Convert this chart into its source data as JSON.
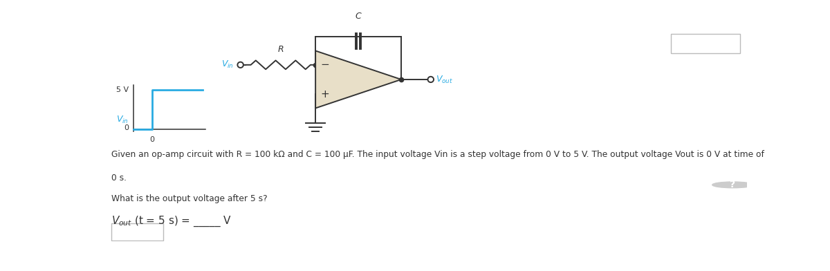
{
  "bg_color": "#ffffff",
  "circuit_color": "#333333",
  "blue_color": "#29abe2",
  "opamp_fill": "#e8dfc8",
  "text_color": "#333333",
  "description_line1": "Given an op-amp circuit with R = 100 kΩ and C = 100 μF. The input voltage Vin is a step voltage from 0 V to 5 V. The output voltage Vout is 0 V at time of",
  "description_line2": "0 s.",
  "question": "What is the output voltage after 5 s?",
  "r_label": "R",
  "c_label": "C",
  "step_5v": "5 V",
  "step_0_x": "0",
  "step_0_y": "0",
  "fig_width": 12.0,
  "fig_height": 3.92,
  "dpi": 100
}
